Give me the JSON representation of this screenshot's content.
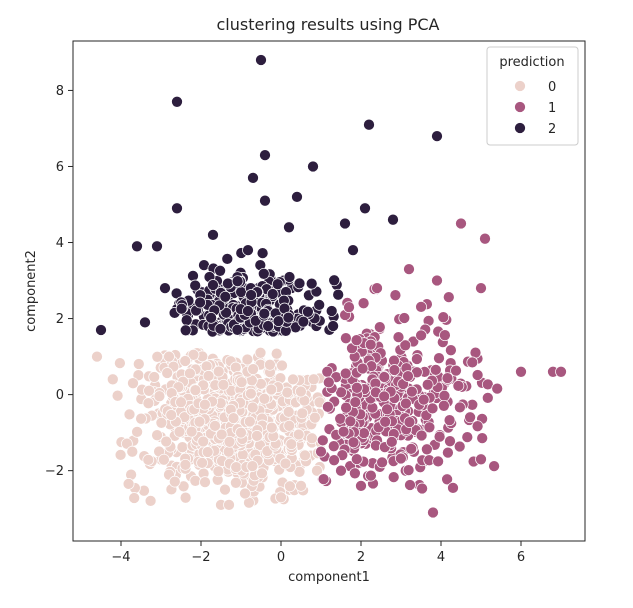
{
  "chart_data": {
    "type": "scatter",
    "title": "clustering results using PCA",
    "xlabel": "component1",
    "ylabel": "component2",
    "xlim": [
      -5.2,
      7.6
    ],
    "ylim": [
      -3.85,
      9.3
    ],
    "xticks": [
      -4,
      -2,
      0,
      2,
      4,
      6
    ],
    "yticks": [
      -2,
      0,
      2,
      4,
      6,
      8
    ],
    "grid": false,
    "legend": {
      "title": "prediction",
      "placement": "top-right",
      "entries": [
        "0",
        "1",
        "2"
      ]
    },
    "series": [
      {
        "name": "0",
        "color": "#ecd1ca",
        "approx_point_count": 900,
        "anchor_points": [
          [
            -4.6,
            1.0
          ],
          [
            -3.7,
            0.3
          ],
          [
            -3.3,
            0.1
          ],
          [
            -2.8,
            1.0
          ],
          [
            -2.5,
            -0.2
          ],
          [
            -1.9,
            -2.3
          ],
          [
            -1.5,
            -2.9
          ],
          [
            -1.3,
            -2.9
          ],
          [
            -0.9,
            -2.6
          ],
          [
            0.0,
            -2.7
          ],
          [
            0.5,
            -2.4
          ],
          [
            0.9,
            -2.0
          ],
          [
            0.3,
            0.4
          ],
          [
            -1.0,
            -1.0
          ]
        ]
      },
      {
        "name": "1",
        "color": "#a8577f",
        "approx_point_count": 420,
        "anchor_points": [
          [
            1.7,
            2.3
          ],
          [
            2.4,
            2.8
          ],
          [
            3.2,
            3.3
          ],
          [
            3.9,
            3.0
          ],
          [
            4.5,
            4.5
          ],
          [
            5.1,
            4.1
          ],
          [
            5.0,
            2.8
          ],
          [
            6.0,
            0.6
          ],
          [
            6.8,
            0.6
          ],
          [
            7.0,
            0.6
          ],
          [
            5.0,
            -1.7
          ],
          [
            3.8,
            -3.1
          ],
          [
            2.0,
            -2.4
          ],
          [
            1.5,
            -2.0
          ],
          [
            1.0,
            -1.5
          ]
        ]
      },
      {
        "name": "2",
        "color": "#2d1e3e",
        "approx_point_count": 340,
        "anchor_points": [
          [
            -0.5,
            8.8
          ],
          [
            -2.6,
            7.7
          ],
          [
            2.2,
            7.1
          ],
          [
            3.9,
            6.8
          ],
          [
            -0.4,
            6.3
          ],
          [
            -0.7,
            5.7
          ],
          [
            0.8,
            6.0
          ],
          [
            -2.6,
            4.9
          ],
          [
            -0.4,
            5.1
          ],
          [
            0.4,
            5.2
          ],
          [
            2.1,
            4.9
          ],
          [
            2.8,
            4.6
          ],
          [
            1.6,
            4.5
          ],
          [
            -3.6,
            3.9
          ],
          [
            -3.1,
            3.9
          ],
          [
            -1.7,
            4.2
          ],
          [
            0.2,
            4.4
          ],
          [
            -4.5,
            1.7
          ],
          [
            -3.4,
            1.9
          ],
          [
            -2.9,
            2.8
          ],
          [
            1.8,
            3.8
          ]
        ]
      }
    ]
  }
}
